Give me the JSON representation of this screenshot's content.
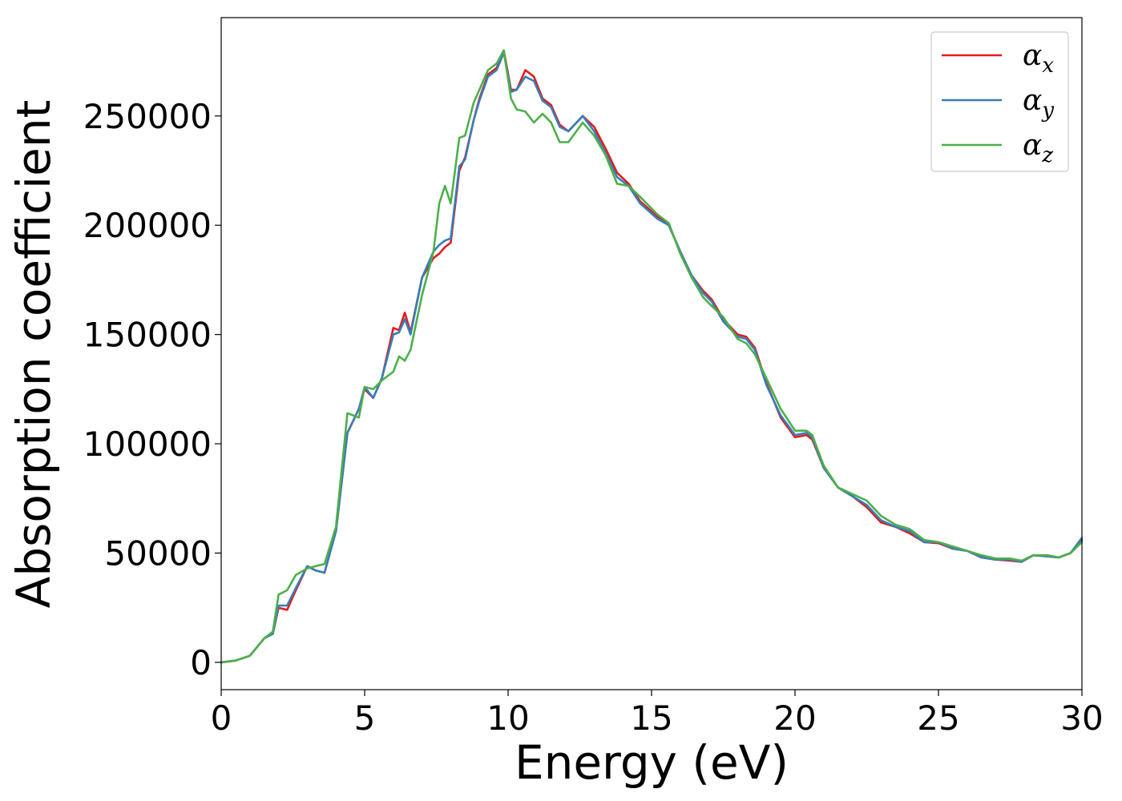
{
  "chart_data": {
    "type": "line",
    "title": "",
    "xlabel": "Energy (eV)",
    "ylabel": "Absorption coefficient",
    "xlim": [
      0,
      30
    ],
    "ylim": [
      -12500,
      295000
    ],
    "xticks": [
      0,
      5,
      10,
      15,
      20,
      25,
      30
    ],
    "yticks": [
      0,
      50000,
      100000,
      150000,
      200000,
      250000
    ],
    "xtick_labels": [
      "0",
      "5",
      "10",
      "15",
      "20",
      "25",
      "30"
    ],
    "ytick_labels": [
      "0",
      "50000",
      "100000",
      "150000",
      "200000",
      "250000"
    ],
    "grid": false,
    "legend": {
      "placement": "top-right",
      "entries": [
        {
          "symbol": "α",
          "sub": "x",
          "color": "#e41a1c"
        },
        {
          "symbol": "α",
          "sub": "y",
          "color": "#377eb8"
        },
        {
          "symbol": "α",
          "sub": "z",
          "color": "#4daf4a"
        }
      ]
    },
    "series": [
      {
        "color": "#e41a1c",
        "points": [
          [
            0,
            0
          ],
          [
            0.5,
            800
          ],
          [
            1,
            3000
          ],
          [
            1.5,
            11000
          ],
          [
            1.8,
            13000
          ],
          [
            2,
            25000
          ],
          [
            2.3,
            24000
          ],
          [
            2.6,
            33000
          ],
          [
            3,
            44000
          ],
          [
            3.3,
            42000
          ],
          [
            3.6,
            41000
          ],
          [
            4,
            60000
          ],
          [
            4.4,
            105000
          ],
          [
            4.8,
            116000
          ],
          [
            5,
            125000
          ],
          [
            5.3,
            121000
          ],
          [
            5.6,
            130000
          ],
          [
            6,
            153000
          ],
          [
            6.2,
            152000
          ],
          [
            6.4,
            160000
          ],
          [
            6.6,
            151000
          ],
          [
            7,
            176000
          ],
          [
            7.4,
            185000
          ],
          [
            7.6,
            187000
          ],
          [
            7.8,
            190000
          ],
          [
            8,
            192000
          ],
          [
            8.3,
            225000
          ],
          [
            8.5,
            231000
          ],
          [
            8.8,
            248000
          ],
          [
            9,
            258000
          ],
          [
            9.3,
            269000
          ],
          [
            9.6,
            272000
          ],
          [
            9.85,
            280000
          ],
          [
            10.1,
            262000
          ],
          [
            10.3,
            262000
          ],
          [
            10.6,
            271000
          ],
          [
            10.9,
            268000
          ],
          [
            11.2,
            258000
          ],
          [
            11.5,
            255000
          ],
          [
            11.8,
            246000
          ],
          [
            12.1,
            243000
          ],
          [
            12.6,
            250000
          ],
          [
            13,
            245000
          ],
          [
            13.4,
            235000
          ],
          [
            13.8,
            224000
          ],
          [
            14.2,
            219000
          ],
          [
            14.6,
            211000
          ],
          [
            15.2,
            204000
          ],
          [
            15.6,
            200000
          ],
          [
            16,
            188000
          ],
          [
            16.4,
            177000
          ],
          [
            16.8,
            170000
          ],
          [
            17.1,
            166000
          ],
          [
            17.5,
            157000
          ],
          [
            18,
            150000
          ],
          [
            18.3,
            149000
          ],
          [
            18.6,
            144000
          ],
          [
            19,
            128000
          ],
          [
            19.5,
            112000
          ],
          [
            20,
            103000
          ],
          [
            20.4,
            104000
          ],
          [
            20.6,
            102000
          ],
          [
            21,
            89000
          ],
          [
            21.5,
            80000
          ],
          [
            22,
            76000
          ],
          [
            22.5,
            71000
          ],
          [
            23,
            64000
          ],
          [
            23.5,
            62000
          ],
          [
            24,
            59000
          ],
          [
            24.5,
            55000
          ],
          [
            25,
            54500
          ],
          [
            25.5,
            52000
          ],
          [
            26,
            51000
          ],
          [
            26.5,
            48000
          ],
          [
            27,
            47000
          ],
          [
            27.5,
            46500
          ],
          [
            27.9,
            46000
          ],
          [
            28.3,
            49000
          ],
          [
            28.8,
            48500
          ],
          [
            29.2,
            48000
          ],
          [
            29.6,
            50000
          ],
          [
            30,
            56000
          ]
        ]
      },
      {
        "color": "#377eb8",
        "points": [
          [
            0,
            0
          ],
          [
            0.5,
            800
          ],
          [
            1,
            3000
          ],
          [
            1.5,
            11000
          ],
          [
            1.8,
            13000
          ],
          [
            2,
            26000
          ],
          [
            2.3,
            26000
          ],
          [
            2.6,
            34000
          ],
          [
            3,
            44000
          ],
          [
            3.3,
            42000
          ],
          [
            3.6,
            41000
          ],
          [
            4,
            60000
          ],
          [
            4.4,
            105000
          ],
          [
            4.8,
            116000
          ],
          [
            5,
            126000
          ],
          [
            5.3,
            121000
          ],
          [
            5.6,
            130000
          ],
          [
            6,
            150000
          ],
          [
            6.2,
            151000
          ],
          [
            6.4,
            157000
          ],
          [
            6.6,
            150000
          ],
          [
            7,
            176000
          ],
          [
            7.4,
            188000
          ],
          [
            7.6,
            191000
          ],
          [
            7.8,
            193000
          ],
          [
            8,
            194000
          ],
          [
            8.3,
            227000
          ],
          [
            8.5,
            230000
          ],
          [
            8.8,
            248000
          ],
          [
            9,
            257000
          ],
          [
            9.3,
            268000
          ],
          [
            9.6,
            271000
          ],
          [
            9.85,
            279000
          ],
          [
            10.1,
            261000
          ],
          [
            10.3,
            262000
          ],
          [
            10.6,
            268000
          ],
          [
            10.9,
            266000
          ],
          [
            11.2,
            257000
          ],
          [
            11.5,
            254000
          ],
          [
            11.8,
            245000
          ],
          [
            12.1,
            243000
          ],
          [
            12.6,
            250000
          ],
          [
            13,
            243000
          ],
          [
            13.4,
            233000
          ],
          [
            13.8,
            222000
          ],
          [
            14.2,
            218000
          ],
          [
            14.6,
            210000
          ],
          [
            15.2,
            203000
          ],
          [
            15.6,
            200000
          ],
          [
            16,
            188000
          ],
          [
            16.4,
            177000
          ],
          [
            16.8,
            169000
          ],
          [
            17.1,
            165000
          ],
          [
            17.5,
            156000
          ],
          [
            18,
            149000
          ],
          [
            18.3,
            148000
          ],
          [
            18.6,
            143000
          ],
          [
            19,
            127000
          ],
          [
            19.5,
            113000
          ],
          [
            20,
            104000
          ],
          [
            20.4,
            105000
          ],
          [
            20.6,
            103000
          ],
          [
            21,
            89000
          ],
          [
            21.5,
            80000
          ],
          [
            22,
            76000
          ],
          [
            22.5,
            72000
          ],
          [
            23,
            65000
          ],
          [
            23.5,
            62000
          ],
          [
            24,
            60000
          ],
          [
            24.5,
            55000
          ],
          [
            25,
            55000
          ],
          [
            25.5,
            52000
          ],
          [
            26,
            51000
          ],
          [
            26.5,
            48000
          ],
          [
            27,
            47000
          ],
          [
            27.5,
            47000
          ],
          [
            27.9,
            46000
          ],
          [
            28.3,
            49000
          ],
          [
            28.8,
            48500
          ],
          [
            29.2,
            48000
          ],
          [
            29.6,
            50000
          ],
          [
            30,
            57000
          ]
        ]
      },
      {
        "color": "#4daf4a",
        "points": [
          [
            0,
            0
          ],
          [
            0.5,
            800
          ],
          [
            1,
            3000
          ],
          [
            1.5,
            11000
          ],
          [
            1.8,
            14000
          ],
          [
            2,
            31000
          ],
          [
            2.3,
            33000
          ],
          [
            2.6,
            40000
          ],
          [
            3,
            43000
          ],
          [
            3.3,
            44000
          ],
          [
            3.6,
            45000
          ],
          [
            4,
            62000
          ],
          [
            4.4,
            114000
          ],
          [
            4.8,
            112000
          ],
          [
            5,
            126000
          ],
          [
            5.3,
            125000
          ],
          [
            5.6,
            129000
          ],
          [
            6,
            133000
          ],
          [
            6.2,
            140000
          ],
          [
            6.4,
            138000
          ],
          [
            6.6,
            143000
          ],
          [
            7,
            168000
          ],
          [
            7.4,
            188000
          ],
          [
            7.6,
            210000
          ],
          [
            7.8,
            218000
          ],
          [
            8,
            210000
          ],
          [
            8.3,
            240000
          ],
          [
            8.5,
            241000
          ],
          [
            8.8,
            256000
          ],
          [
            9,
            262000
          ],
          [
            9.3,
            271000
          ],
          [
            9.6,
            274000
          ],
          [
            9.85,
            280000
          ],
          [
            10.1,
            258000
          ],
          [
            10.3,
            253000
          ],
          [
            10.6,
            252000
          ],
          [
            10.9,
            247000
          ],
          [
            11.2,
            251000
          ],
          [
            11.5,
            247000
          ],
          [
            11.8,
            238000
          ],
          [
            12.1,
            238000
          ],
          [
            12.6,
            247000
          ],
          [
            13,
            241000
          ],
          [
            13.4,
            232000
          ],
          [
            13.8,
            219000
          ],
          [
            14.2,
            218000
          ],
          [
            14.6,
            213000
          ],
          [
            15.2,
            205000
          ],
          [
            15.6,
            201000
          ],
          [
            16,
            187000
          ],
          [
            16.4,
            176000
          ],
          [
            16.8,
            167000
          ],
          [
            17.1,
            163000
          ],
          [
            17.5,
            158000
          ],
          [
            18,
            148000
          ],
          [
            18.3,
            146000
          ],
          [
            18.6,
            141000
          ],
          [
            19,
            130000
          ],
          [
            19.5,
            116000
          ],
          [
            20,
            106000
          ],
          [
            20.4,
            106000
          ],
          [
            20.6,
            104000
          ],
          [
            21,
            90000
          ],
          [
            21.5,
            80000
          ],
          [
            22,
            77000
          ],
          [
            22.5,
            74000
          ],
          [
            23,
            67000
          ],
          [
            23.5,
            63000
          ],
          [
            24,
            61000
          ],
          [
            24.5,
            56000
          ],
          [
            25,
            55000
          ],
          [
            25.5,
            53000
          ],
          [
            26,
            51000
          ],
          [
            26.5,
            49000
          ],
          [
            27,
            47500
          ],
          [
            27.5,
            47500
          ],
          [
            27.9,
            46500
          ],
          [
            28.3,
            49000
          ],
          [
            28.8,
            49000
          ],
          [
            29.2,
            48000
          ],
          [
            29.6,
            50000
          ],
          [
            30,
            55000
          ]
        ]
      }
    ]
  }
}
